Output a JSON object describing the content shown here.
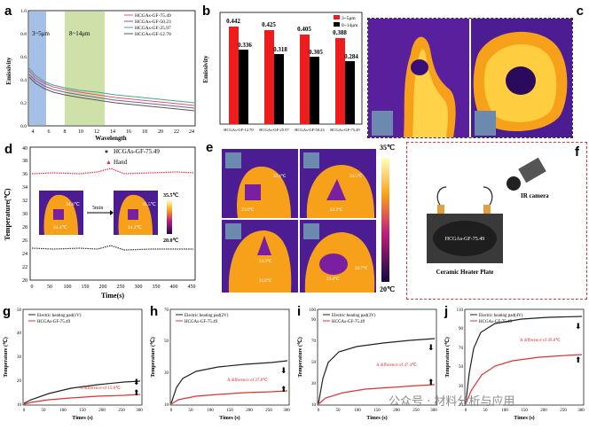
{
  "labels": {
    "a": "a",
    "b": "b",
    "c": "c",
    "d": "d",
    "e": "e",
    "f": "f",
    "g": "g",
    "h": "h",
    "i": "i",
    "j": "j"
  },
  "panel_a": {
    "band1": "3~5μm",
    "band2": "8~14μm",
    "ylabel": "Emissivity",
    "xlabel": "Wavelength",
    "xticks": [
      "4",
      "6",
      "8",
      "10",
      "12",
      "14",
      "16",
      "18",
      "20",
      "22",
      "24"
    ],
    "yticks": [
      "0.0",
      "0.1",
      "0.2",
      "0.3",
      "0.4",
      "0.5",
      "0.6",
      "0.7",
      "0.8",
      "0.9",
      "1.0"
    ],
    "legend": [
      "HCGAs-GF-75.49",
      "HCGAs-GF-50.23",
      "HCGAs-GF-25.97",
      "HCGAs-GF-12.70"
    ],
    "colors": [
      "#e05a5a",
      "#7a5aa8",
      "#4aa0a0",
      "#555555"
    ]
  },
  "panel_b": {
    "ylabel": "Emissivity",
    "legend": [
      "3~5μm",
      "8~14μm"
    ],
    "categories": [
      "HCGAs-GF-12.70",
      "HCGAs-GF-25.97",
      "HCGAs-GF-50.23",
      "HCGAs-GF-75.49"
    ],
    "red_values": [
      "0.442",
      "0.425",
      "0.405",
      "0.388"
    ],
    "black_values": [
      "0.336",
      "0.318",
      "0.305",
      "0.284"
    ]
  },
  "panel_d": {
    "legend": [
      "HCGAs-GF-75.49",
      "Hand"
    ],
    "ylabel": "Temperature(℃)",
    "xlabel": "Time(s)",
    "xticks": [
      "0",
      "50",
      "100",
      "150",
      "200",
      "250",
      "300",
      "350",
      "400",
      "450"
    ],
    "yticks": [
      "20",
      "22",
      "24",
      "26",
      "28",
      "30",
      "32",
      "34",
      "36",
      "38",
      "40"
    ],
    "scale_max": "35.5℃",
    "scale_min": "20.0℃",
    "img1_top": "34.6℃",
    "img1_mid": "24.4℃",
    "img2_top": "35.5℃",
    "img2_mid": "24.2℃",
    "arrow_label": "5min"
  },
  "panel_e": {
    "scale_max": "35℃",
    "scale_min": "20℃",
    "t1a": "32.4℃",
    "t1b": "23.0℃",
    "t2a": "34.5℃",
    "t2b": "23.3℃",
    "t3a": "24.3℃",
    "t3b": "33.8℃",
    "t4a": "24.4℃",
    "t4b": "34.7℃"
  },
  "panel_f": {
    "camera": "IR camera",
    "sample": "HCGAs-GF-75.49",
    "plate": "Ceramic Heater Plate"
  },
  "heating_panels": [
    {
      "legend1": "Electric heating pad(1V)",
      "legend2": "HCGAs-GF-75.49",
      "note": "A difference of 15.8℃",
      "ymax": "50",
      "yticks": [
        "10",
        "15",
        "20",
        "25",
        "30",
        "35",
        "40",
        "45",
        "50"
      ]
    },
    {
      "legend1": "Electric heating pad(2V)",
      "legend2": "HCGAs-GF-75.49",
      "note": "A difference of 27.8℃",
      "ymax": "70",
      "yticks": [
        "10",
        "20",
        "30",
        "40",
        "50",
        "60",
        "70"
      ]
    },
    {
      "legend1": "Electric heating pad(3V)",
      "legend2": "HCGAs-GF-75.49",
      "note": "A difference of 47.4℃",
      "ymax": "100",
      "yticks": [
        "10",
        "20",
        "30",
        "40",
        "50",
        "60",
        "70",
        "80",
        "90",
        "100"
      ]
    },
    {
      "legend1": "Electric heating pad(4V)",
      "legend2": "HCGAs-GF-75.49",
      "note": "A difference of 49.8℃",
      "ymax": "110",
      "yticks": [
        "10",
        "20",
        "30",
        "40",
        "50",
        "60",
        "70",
        "80",
        "90",
        "100",
        "110"
      ]
    }
  ],
  "heating_common": {
    "ylabel": "Temperature (℃)",
    "xlabel": "Times (s)",
    "xticks": [
      "0",
      "50",
      "100",
      "150",
      "200",
      "250",
      "300"
    ]
  },
  "watermark": "公众号 · 材料分析与应用"
}
